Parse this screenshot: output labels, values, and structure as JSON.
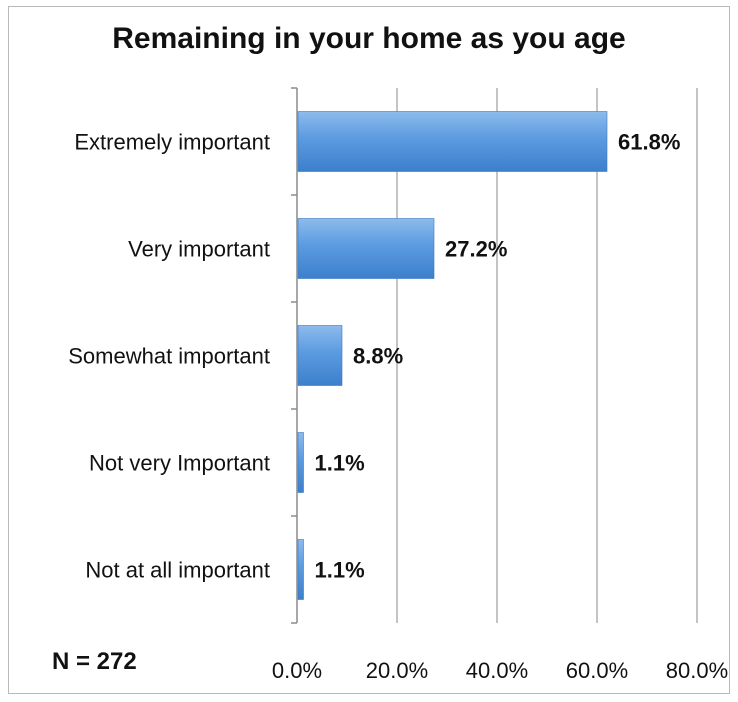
{
  "chart_data": {
    "type": "bar",
    "orientation": "horizontal",
    "title": "Remaining in your home as you age",
    "categories": [
      "Extremely important",
      "Very important",
      "Somewhat important",
      "Not very Important",
      "Not at all important"
    ],
    "values": [
      61.8,
      27.2,
      8.8,
      1.1,
      1.1
    ],
    "value_labels": [
      "61.8%",
      "27.2%",
      "8.8%",
      "1.1%",
      "1.1%"
    ],
    "xlim": [
      0,
      80
    ],
    "x_ticks": [
      0,
      20,
      40,
      60,
      80
    ],
    "x_tick_labels": [
      "0.0%",
      "20.0%",
      "40.0%",
      "60.0%",
      "80.0%"
    ],
    "grid": "vertical",
    "bar_color": "#4a8fd6"
  },
  "note": "N = 272"
}
